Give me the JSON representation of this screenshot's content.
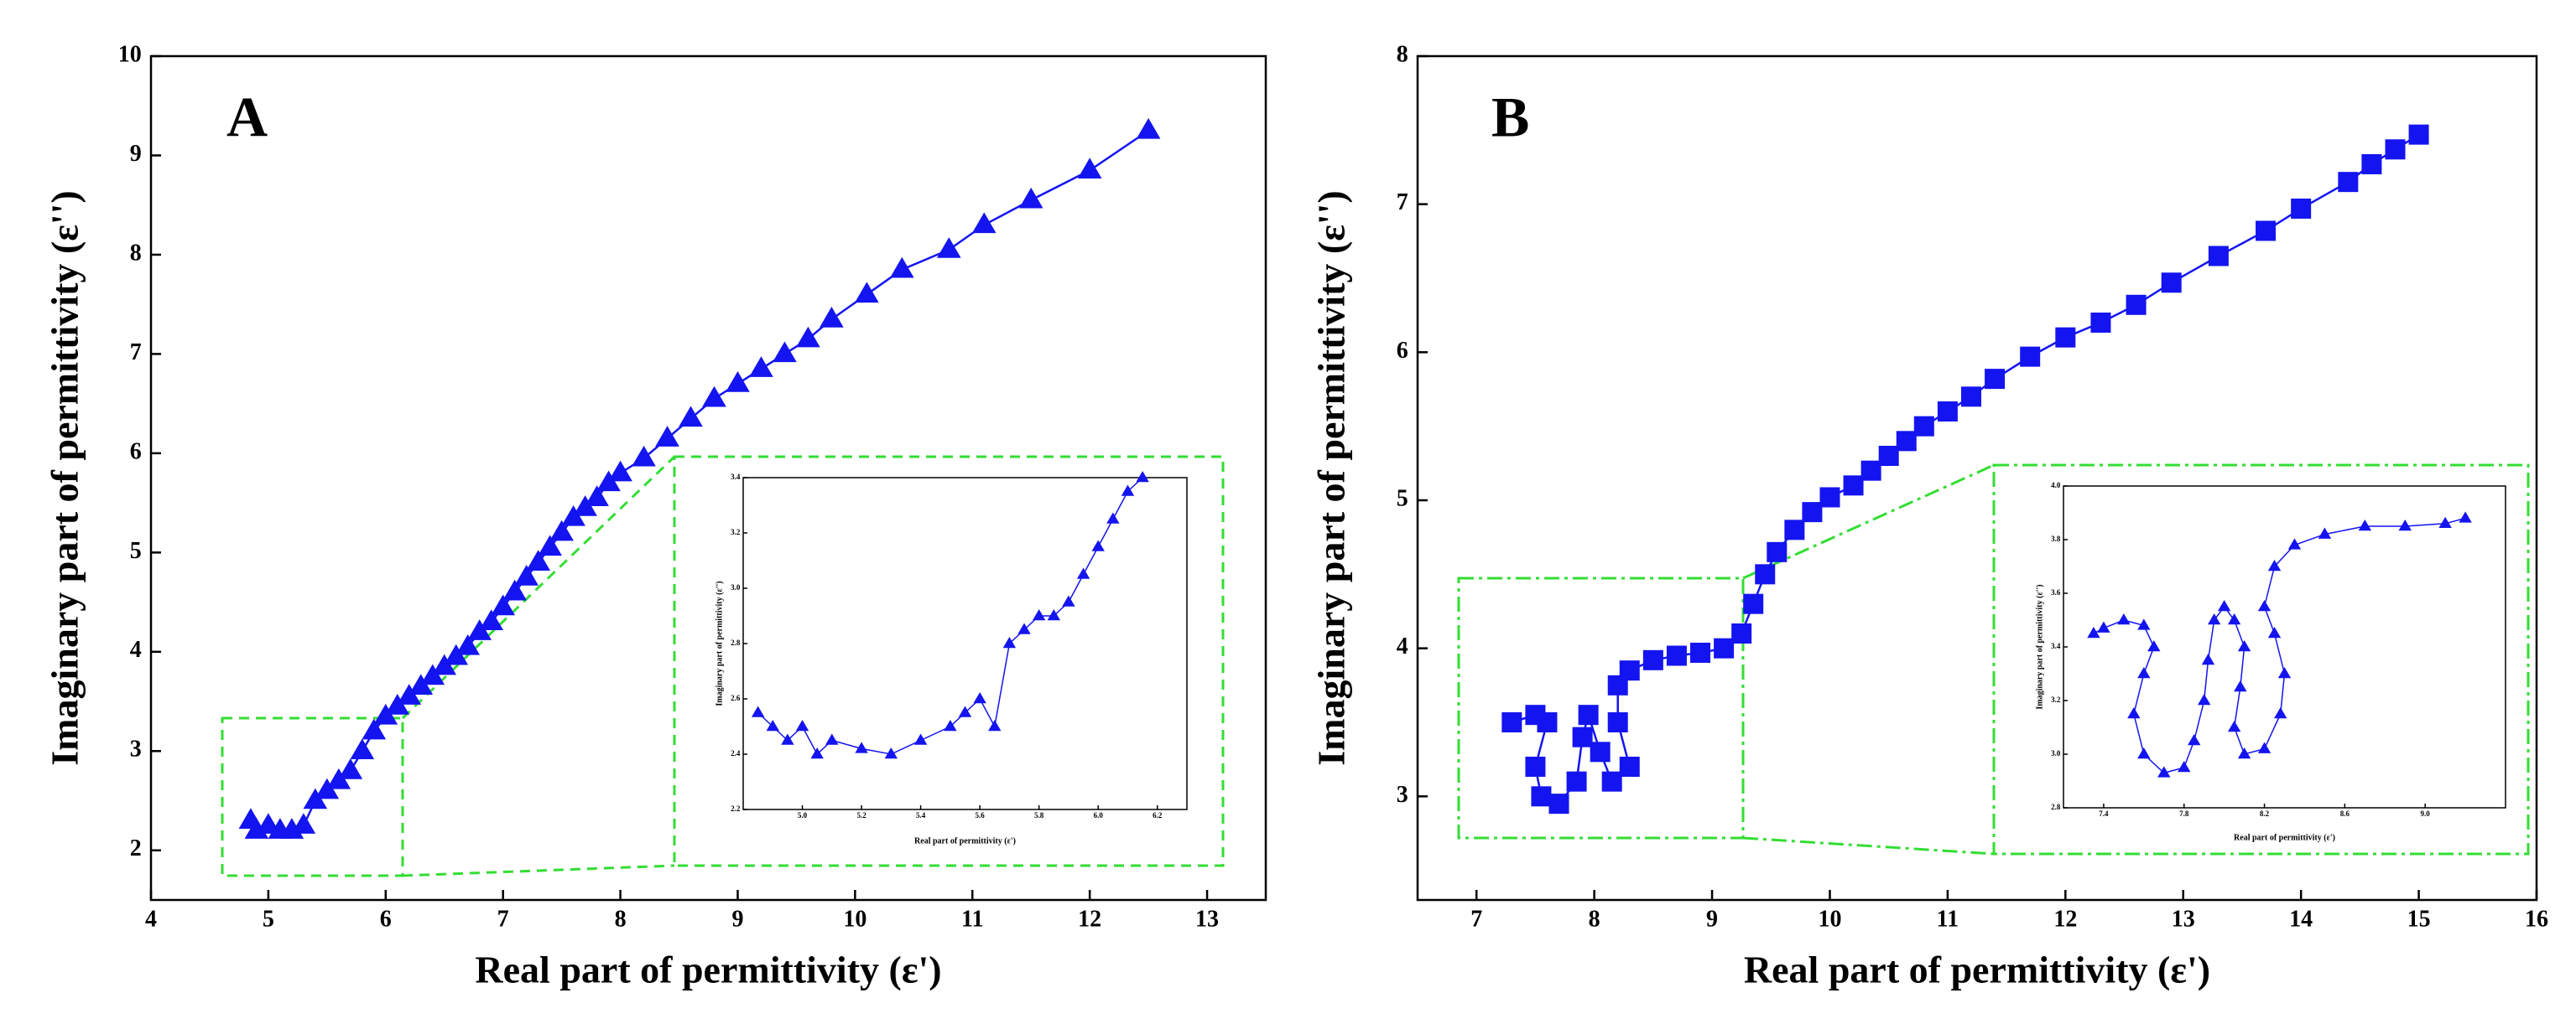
{
  "chart_data": [
    {
      "type": "line",
      "label": "A",
      "x_label": "Real part of permittivity (ε')",
      "y_label": "Imaginary part of permittivity (ε'')",
      "color": "#1414f0",
      "marker": "triangle",
      "xlim": [
        4,
        13.5
      ],
      "xticks": [
        4,
        5,
        6,
        7,
        8,
        9,
        10,
        11,
        12,
        13
      ],
      "ylim": [
        1.5,
        10
      ],
      "yticks": [
        2,
        3,
        4,
        5,
        6,
        7,
        8,
        9,
        10
      ],
      "x": [
        4.85,
        4.9,
        5.0,
        5.1,
        5.2,
        5.3,
        5.4,
        5.5,
        5.6,
        5.7,
        5.8,
        5.9,
        6.0,
        6.1,
        6.2,
        6.3,
        6.4,
        6.5,
        6.6,
        6.7,
        6.8,
        6.9,
        7.0,
        7.1,
        7.2,
        7.3,
        7.4,
        7.5,
        7.6,
        7.7,
        7.8,
        7.9,
        8.0,
        8.2,
        8.4,
        8.6,
        8.8,
        9.0,
        9.2,
        9.4,
        9.6,
        9.8,
        10.1,
        10.4,
        10.8,
        11.1,
        11.5,
        12.0,
        12.5
      ],
      "values": [
        2.3,
        2.2,
        2.25,
        2.2,
        2.2,
        2.25,
        2.5,
        2.6,
        2.7,
        2.8,
        3.0,
        3.2,
        3.35,
        3.45,
        3.55,
        3.65,
        3.75,
        3.85,
        3.95,
        4.05,
        4.2,
        4.3,
        4.45,
        4.6,
        4.75,
        4.9,
        5.05,
        5.2,
        5.35,
        5.45,
        5.55,
        5.7,
        5.8,
        5.95,
        6.15,
        6.35,
        6.55,
        6.7,
        6.85,
        7.0,
        7.15,
        7.35,
        7.6,
        7.85,
        8.05,
        8.3,
        8.55,
        8.85,
        9.25
      ]
    },
    {
      "type": "line",
      "x_label": "Real part of permittivity (ε')",
      "y_label": "Imaginary part of permittivity (ε'')",
      "color": "#1414f0",
      "marker": "triangle",
      "xlim": [
        4.8,
        6.3
      ],
      "xticks": [
        {
          "value": 5,
          "label": "5.0"
        },
        5.2,
        5.4,
        5.6,
        5.8,
        {
          "value": 6,
          "label": "6.0"
        },
        6.2
      ],
      "ylim": [
        2.2,
        3.4
      ],
      "yticks": [
        2.2,
        2.4,
        2.6,
        2.8,
        {
          "value": 3,
          "label": "3.0"
        },
        3.2,
        3.4
      ],
      "x": [
        4.85,
        4.9,
        4.95,
        5.0,
        5.05,
        5.1,
        5.2,
        5.3,
        5.4,
        5.5,
        5.55,
        5.6,
        5.65,
        5.7,
        5.75,
        5.8,
        5.85,
        5.9,
        5.95,
        6.0,
        6.05,
        6.1,
        6.15
      ],
      "values": [
        2.55,
        2.5,
        2.45,
        2.5,
        2.4,
        2.45,
        2.42,
        2.4,
        2.45,
        2.5,
        2.55,
        2.6,
        2.5,
        2.8,
        2.85,
        2.9,
        2.9,
        2.95,
        3.05,
        3.15,
        3.25,
        3.35,
        3.4
      ]
    },
    {
      "type": "line",
      "label": "B",
      "x_label": "Real part of permittivity (ε')",
      "y_label": "Imaginary part of permittivity (ε'')",
      "color": "#1414f0",
      "marker": "square",
      "xlim": [
        6.5,
        16
      ],
      "xticks": [
        7,
        8,
        9,
        10,
        11,
        12,
        13,
        14,
        15,
        16
      ],
      "ylim": [
        2.3,
        8
      ],
      "yticks": [
        3,
        4,
        5,
        6,
        7,
        8
      ],
      "x": [
        7.3,
        7.5,
        7.6,
        7.5,
        7.55,
        7.7,
        7.85,
        7.9,
        7.95,
        8.05,
        8.15,
        8.3,
        8.2,
        8.2,
        8.3,
        8.5,
        8.7,
        8.9,
        9.1,
        9.25,
        9.35,
        9.45,
        9.55,
        9.7,
        9.85,
        10.0,
        10.2,
        10.35,
        10.5,
        10.65,
        10.8,
        11.0,
        11.2,
        11.4,
        11.7,
        12.0,
        12.3,
        12.6,
        12.9,
        13.3,
        13.7,
        14.0,
        14.4,
        14.6,
        14.8,
        15.0
      ],
      "values": [
        3.5,
        3.55,
        3.5,
        3.2,
        3.0,
        2.95,
        3.1,
        3.4,
        3.55,
        3.3,
        3.1,
        3.2,
        3.5,
        3.75,
        3.85,
        3.92,
        3.95,
        3.97,
        4.0,
        4.1,
        4.3,
        4.5,
        4.65,
        4.8,
        4.92,
        5.02,
        5.1,
        5.2,
        5.3,
        5.4,
        5.5,
        5.6,
        5.7,
        5.82,
        5.97,
        6.1,
        6.2,
        6.32,
        6.47,
        6.65,
        6.82,
        6.97,
        7.15,
        7.27,
        7.37,
        7.47
      ]
    },
    {
      "type": "line",
      "x_label": "Real part of permittivity (ε')",
      "y_label": "Imaginary part of permittivity (ε'')",
      "color": "#1414f0",
      "marker": "triangle",
      "xlim": [
        7.2,
        9.4
      ],
      "xticks": [
        7.4,
        7.8,
        8.2,
        8.6,
        {
          "value": 9,
          "label": "9.0"
        }
      ],
      "ylim": [
        2.8,
        4
      ],
      "yticks": [
        2.8,
        {
          "value": 3,
          "label": "3.0"
        },
        3.2,
        3.4,
        3.6,
        3.8,
        {
          "value": 4,
          "label": "4.0"
        }
      ],
      "x": [
        7.35,
        7.4,
        7.5,
        7.6,
        7.65,
        7.6,
        7.55,
        7.6,
        7.7,
        7.8,
        7.85,
        7.9,
        7.92,
        7.95,
        8.0,
        8.05,
        8.1,
        8.08,
        8.05,
        8.1,
        8.2,
        8.28,
        8.3,
        8.25,
        8.2,
        8.25,
        8.35,
        8.5,
        8.7,
        8.9,
        9.1,
        9.2
      ],
      "values": [
        3.45,
        3.47,
        3.5,
        3.48,
        3.4,
        3.3,
        3.15,
        3.0,
        2.93,
        2.95,
        3.05,
        3.2,
        3.35,
        3.5,
        3.55,
        3.5,
        3.4,
        3.25,
        3.1,
        3.0,
        3.02,
        3.15,
        3.3,
        3.45,
        3.55,
        3.7,
        3.78,
        3.82,
        3.85,
        3.85,
        3.86,
        3.88
      ]
    }
  ]
}
